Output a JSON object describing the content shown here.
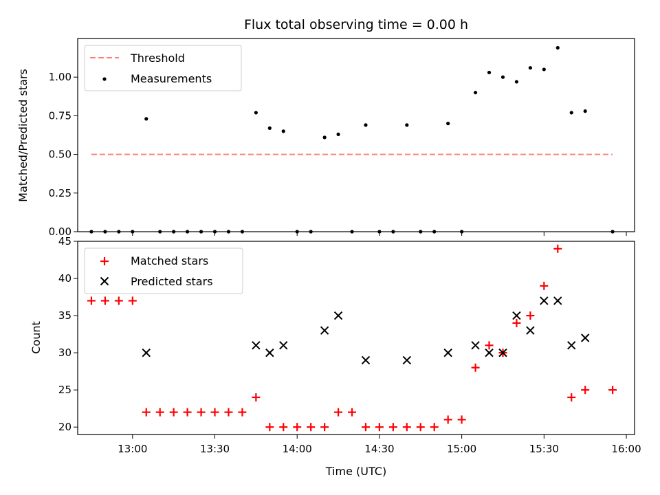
{
  "chart_data": [
    {
      "type": "scatter",
      "title": "Flux total observing time = 0.00 h",
      "xlabel": "",
      "ylabel": "Matched/Predicted stars",
      "ylim": [
        0,
        1.25
      ],
      "yticks": [
        "0.00",
        "0.25",
        "0.50",
        "0.75",
        "1.00"
      ],
      "ytick_values": [
        0,
        0.25,
        0.5,
        0.75,
        1.0
      ],
      "legend": {
        "position": "upper-left",
        "entries": [
          "Threshold",
          "Measurements"
        ]
      },
      "threshold": {
        "name": "Threshold",
        "y": 0.5,
        "x_start": "12:45",
        "x_end": "15:55",
        "color": "#ff7f7f",
        "style": "dashed"
      },
      "series": [
        {
          "name": "Measurements",
          "color": "#000000",
          "x": [
            "12:45",
            "12:50",
            "12:55",
            "13:00",
            "13:05",
            "13:10",
            "13:15",
            "13:20",
            "13:25",
            "13:30",
            "13:35",
            "13:40",
            "13:45",
            "13:50",
            "13:55",
            "14:00",
            "14:05",
            "14:10",
            "14:15",
            "14:20",
            "14:25",
            "14:30",
            "14:35",
            "14:40",
            "14:45",
            "14:50",
            "14:55",
            "15:00",
            "15:05",
            "15:10",
            "15:15",
            "15:20",
            "15:25",
            "15:30",
            "15:35",
            "15:40",
            "15:45",
            "15:55"
          ],
          "y": [
            0,
            0,
            0,
            0,
            0.73,
            0,
            0,
            0,
            0,
            0,
            0,
            0,
            0.77,
            0.67,
            0.65,
            0,
            0,
            0.61,
            0.63,
            0,
            0.69,
            0,
            0,
            0.69,
            0,
            0,
            0.7,
            0,
            0.9,
            1.03,
            1.0,
            0.97,
            1.06,
            1.05,
            1.19,
            0.77,
            0.78,
            0
          ]
        }
      ]
    },
    {
      "type": "scatter",
      "title": "",
      "xlabel": "Time (UTC)",
      "ylabel": "Count",
      "xticks": [
        "13:00",
        "13:30",
        "14:00",
        "14:30",
        "15:00",
        "15:30",
        "16:00"
      ],
      "xrange": [
        "12:40",
        "16:03"
      ],
      "ylim": [
        19,
        45
      ],
      "yticks": [
        "20",
        "25",
        "30",
        "35",
        "40",
        "45"
      ],
      "ytick_values": [
        20,
        25,
        30,
        35,
        40,
        45
      ],
      "legend": {
        "position": "upper-left",
        "entries": [
          "Matched stars",
          "Predicted stars"
        ]
      },
      "series": [
        {
          "name": "Matched stars",
          "color": "#ff0000",
          "marker": "plus",
          "x": [
            "12:45",
            "12:50",
            "12:55",
            "13:00",
            "13:05",
            "13:10",
            "13:15",
            "13:20",
            "13:25",
            "13:30",
            "13:35",
            "13:40",
            "13:45",
            "13:50",
            "13:55",
            "14:00",
            "14:05",
            "14:10",
            "14:15",
            "14:20",
            "14:25",
            "14:30",
            "14:35",
            "14:40",
            "14:45",
            "14:50",
            "14:55",
            "15:00",
            "15:05",
            "15:10",
            "15:15",
            "15:20",
            "15:25",
            "15:30",
            "15:35",
            "15:40",
            "15:45",
            "15:55"
          ],
          "y": [
            37,
            37,
            37,
            37,
            22,
            22,
            22,
            22,
            22,
            22,
            22,
            22,
            24,
            20,
            20,
            20,
            20,
            20,
            22,
            22,
            20,
            20,
            20,
            20,
            20,
            20,
            21,
            21,
            28,
            31,
            30,
            34,
            35,
            39,
            44,
            24,
            25,
            25
          ]
        },
        {
          "name": "Predicted stars",
          "color": "#000000",
          "marker": "x",
          "x": [
            "13:05",
            "13:45",
            "13:50",
            "13:55",
            "14:10",
            "14:15",
            "14:25",
            "14:40",
            "14:55",
            "15:05",
            "15:10",
            "15:15",
            "15:20",
            "15:25",
            "15:30",
            "15:35",
            "15:40",
            "15:45"
          ],
          "y": [
            30,
            31,
            30,
            31,
            33,
            35,
            29,
            29,
            30,
            31,
            30,
            30,
            35,
            33,
            37,
            37,
            31,
            32
          ]
        }
      ]
    }
  ]
}
